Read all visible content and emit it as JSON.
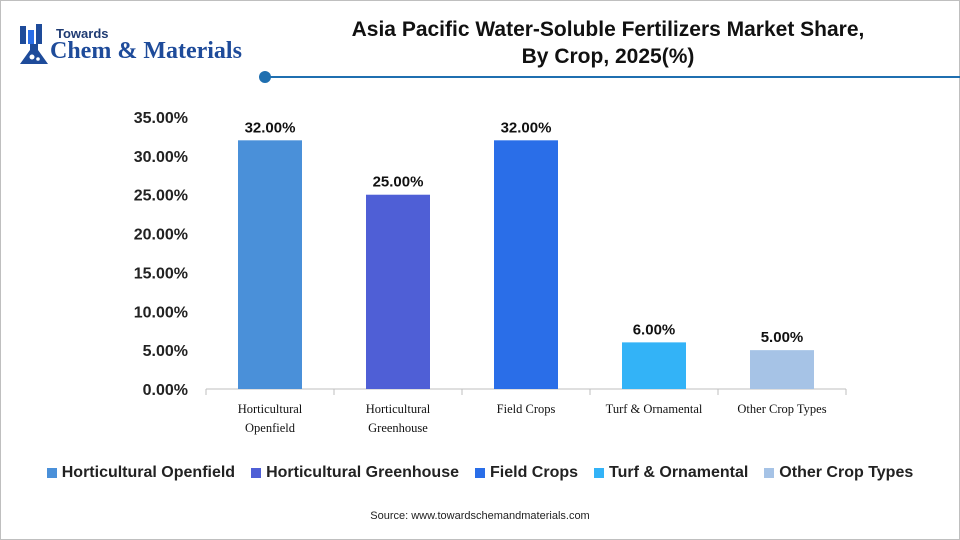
{
  "header": {
    "logo_top": "Towards",
    "logo_bottom": "Chem & Materials",
    "title_line1": "Asia Pacific Water-Soluble Fertilizers Market Share,",
    "title_line2": "By Crop, 2025(%)"
  },
  "chart_data": {
    "type": "bar",
    "title": "Asia Pacific Water-Soluble Fertilizers Market Share, By Crop, 2025(%)",
    "categories": [
      "Horticultural Openfield",
      "Horticultural Greenhouse",
      "Field Crops",
      "Turf & Ornamental",
      "Other Crop Types"
    ],
    "category_tick_lines": [
      [
        "Horticultural",
        "Openfield"
      ],
      [
        "Horticultural",
        "Greenhouse"
      ],
      [
        "Field Crops"
      ],
      [
        "Turf & Ornamental"
      ],
      [
        "Other Crop Types"
      ]
    ],
    "values": [
      32,
      25,
      32,
      6,
      5
    ],
    "data_labels": [
      "32.00%",
      "25.00%",
      "32.00%",
      "6.00%",
      "5.00%"
    ],
    "colors": [
      "#4a90d9",
      "#4f5fd6",
      "#2a6ee8",
      "#33b3f7",
      "#a6c3e6"
    ],
    "ylim": [
      0,
      35
    ],
    "yticks": [
      0,
      5,
      10,
      15,
      20,
      25,
      30,
      35
    ],
    "ytick_labels": [
      "0.00%",
      "5.00%",
      "10.00%",
      "15.00%",
      "20.00%",
      "25.00%",
      "30.00%",
      "35.00%"
    ],
    "xlabel": "",
    "ylabel": "",
    "grid": false,
    "legend_position": "bottom"
  },
  "legend": [
    {
      "label": "Horticultural Openfield",
      "color": "#4a90d9"
    },
    {
      "label": "Horticultural Greenhouse",
      "color": "#4f5fd6"
    },
    {
      "label": "Field Crops",
      "color": "#2a6ee8"
    },
    {
      "label": "Turf & Ornamental",
      "color": "#33b3f7"
    },
    {
      "label": "Other Crop Types",
      "color": "#a6c3e6"
    }
  ],
  "source": "Source: www.towardschemandmaterials.com"
}
